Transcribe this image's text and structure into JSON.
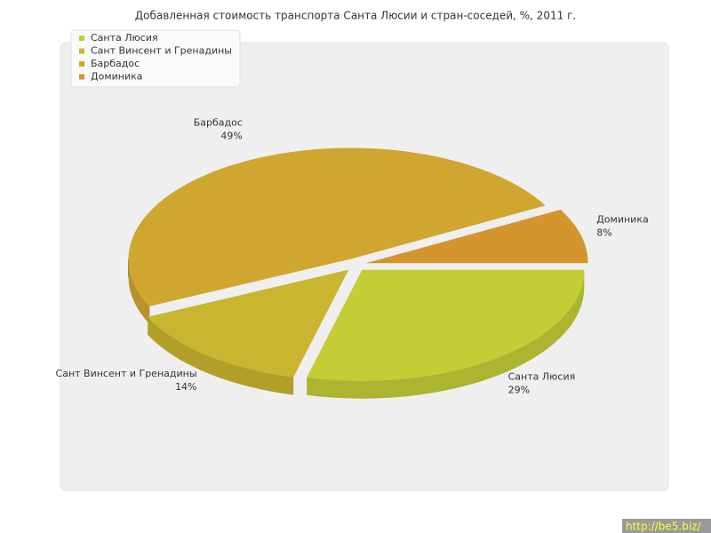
{
  "chart_data": {
    "type": "pie",
    "title": "Добавленная стоимость транспорта Санта Люсии и стран-соседей, %, 2011 г.",
    "categories": [
      "Санта Люсия",
      "Сант Винсент и Гренадины",
      "Барбадос",
      "Доминика"
    ],
    "values": [
      29,
      14,
      49,
      8
    ],
    "value_labels": [
      "29%",
      "14%",
      "49%",
      "8%"
    ],
    "colors": [
      "#c4cc36",
      "#c9b530",
      "#cfa62f",
      "#d4952e"
    ],
    "legend": "upper left"
  },
  "watermark": "http://be5.biz/"
}
